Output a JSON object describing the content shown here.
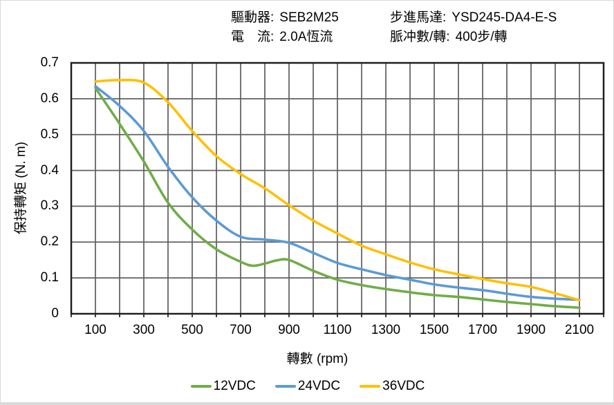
{
  "header": {
    "fields": [
      {
        "label": "驅動器:",
        "value": "SEB2M25"
      },
      {
        "label": "電　流:",
        "value": "2.0A恆流"
      },
      {
        "label": "步進馬達:",
        "value": "YSD245-DA4-E-S"
      },
      {
        "label": "脈冲數/轉:",
        "value": "400步/轉"
      }
    ]
  },
  "chart_data": {
    "type": "line",
    "title": "",
    "xlabel": "轉數 (rpm)",
    "ylabel": "保持轉矩 (N. m)",
    "xlim": [
      0,
      2200
    ],
    "ylim": [
      0,
      0.7
    ],
    "x_grid_step": 100,
    "y_grid_step": 0.1,
    "x_ticks": [
      100,
      300,
      500,
      700,
      900,
      1100,
      1300,
      1500,
      1700,
      1900,
      2100
    ],
    "y_ticks": [
      "0",
      "0.1",
      "0.2",
      "0.3",
      "0.4",
      "0.5",
      "0.6",
      "0.7"
    ],
    "grid": true,
    "grid_color": "#606060",
    "axis_color": "#1f1f1f",
    "legend_position": "bottom",
    "series": [
      {
        "name": "12VDC",
        "color": "#70AD47",
        "points": [
          [
            100,
            0.63
          ],
          [
            200,
            0.53
          ],
          [
            300,
            0.425
          ],
          [
            400,
            0.31
          ],
          [
            500,
            0.235
          ],
          [
            600,
            0.18
          ],
          [
            700,
            0.145
          ],
          [
            750,
            0.134
          ],
          [
            800,
            0.14
          ],
          [
            850,
            0.149
          ],
          [
            900,
            0.15
          ],
          [
            1000,
            0.12
          ],
          [
            1100,
            0.095
          ],
          [
            1200,
            0.08
          ],
          [
            1300,
            0.069
          ],
          [
            1400,
            0.06
          ],
          [
            1500,
            0.052
          ],
          [
            1600,
            0.047
          ],
          [
            1700,
            0.04
          ],
          [
            1800,
            0.033
          ],
          [
            1900,
            0.027
          ],
          [
            2000,
            0.021
          ],
          [
            2100,
            0.017
          ]
        ]
      },
      {
        "name": "24VDC",
        "color": "#5B9BD5",
        "points": [
          [
            100,
            0.635
          ],
          [
            200,
            0.58
          ],
          [
            300,
            0.51
          ],
          [
            400,
            0.41
          ],
          [
            500,
            0.325
          ],
          [
            600,
            0.26
          ],
          [
            700,
            0.215
          ],
          [
            800,
            0.207
          ],
          [
            900,
            0.198
          ],
          [
            1000,
            0.17
          ],
          [
            1100,
            0.142
          ],
          [
            1200,
            0.124
          ],
          [
            1300,
            0.108
          ],
          [
            1400,
            0.095
          ],
          [
            1500,
            0.082
          ],
          [
            1600,
            0.073
          ],
          [
            1700,
            0.066
          ],
          [
            1800,
            0.056
          ],
          [
            1900,
            0.047
          ],
          [
            2000,
            0.042
          ],
          [
            2100,
            0.039
          ]
        ]
      },
      {
        "name": "36VDC",
        "color": "#FFC000",
        "points": [
          [
            100,
            0.648
          ],
          [
            200,
            0.652
          ],
          [
            300,
            0.645
          ],
          [
            400,
            0.59
          ],
          [
            500,
            0.51
          ],
          [
            600,
            0.44
          ],
          [
            700,
            0.39
          ],
          [
            800,
            0.35
          ],
          [
            900,
            0.303
          ],
          [
            1000,
            0.26
          ],
          [
            1100,
            0.224
          ],
          [
            1200,
            0.19
          ],
          [
            1300,
            0.166
          ],
          [
            1400,
            0.143
          ],
          [
            1500,
            0.124
          ],
          [
            1600,
            0.11
          ],
          [
            1700,
            0.097
          ],
          [
            1800,
            0.085
          ],
          [
            1900,
            0.075
          ],
          [
            2000,
            0.057
          ],
          [
            2100,
            0.038
          ]
        ]
      }
    ]
  }
}
